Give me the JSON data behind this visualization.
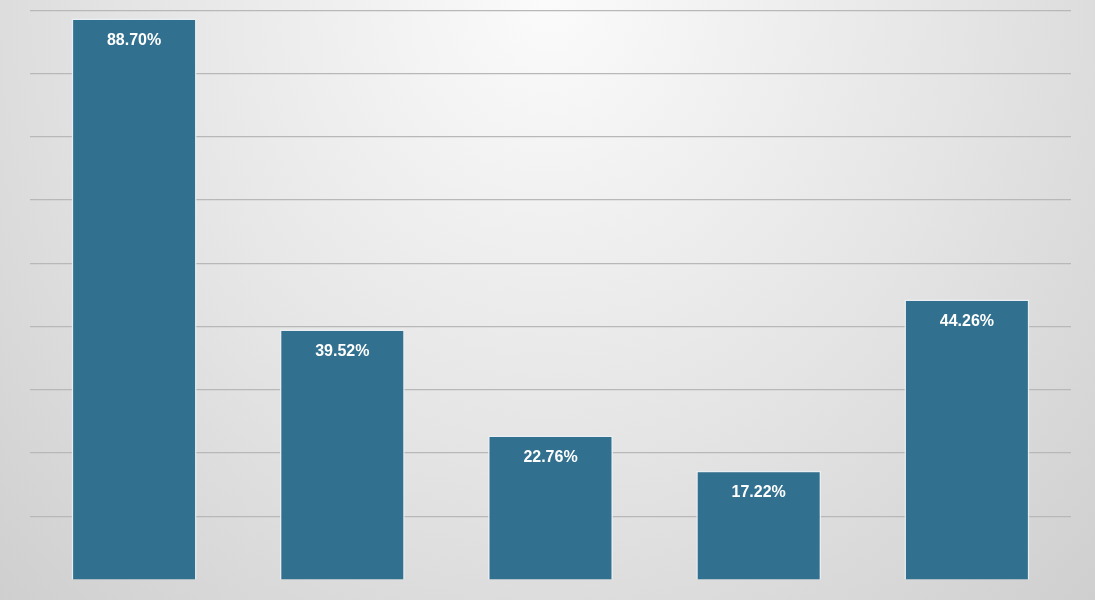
{
  "chart_data": {
    "type": "bar",
    "categories": [
      null,
      null,
      null,
      null,
      null
    ],
    "values": [
      88.7,
      39.52,
      22.76,
      17.22,
      44.26
    ],
    "value_labels": [
      "88.70%",
      "39.52%",
      "22.76%",
      "17.22%",
      "44.26%"
    ],
    "color": "#31718f",
    "yticks": [
      {
        "value": 10,
        "label": null
      },
      {
        "value": 20,
        "label": null
      },
      {
        "value": 30,
        "label": null
      },
      {
        "value": 40,
        "label": null
      },
      {
        "value": 50,
        "label": null
      },
      {
        "value": 60,
        "label": null
      },
      {
        "value": 70,
        "label": null
      },
      {
        "value": 80,
        "label": null
      },
      {
        "value": 90,
        "label": null
      }
    ],
    "grid": "y",
    "legend": false
  }
}
